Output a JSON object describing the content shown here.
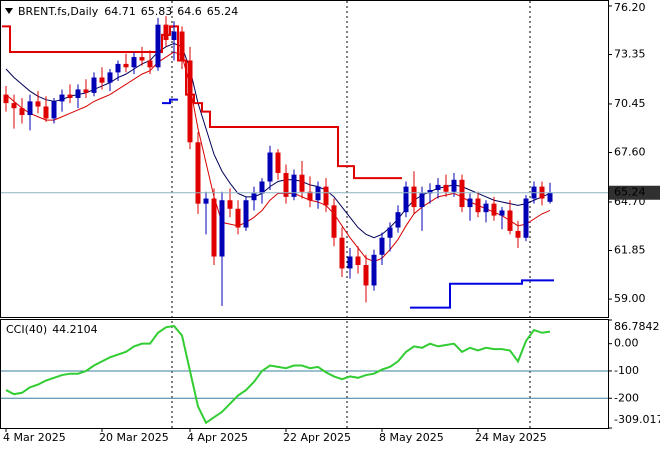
{
  "chart_data": [
    {
      "type": "candlestick",
      "title": "BRENT.fs,Daily",
      "categories": [
        "4 Mar 2025",
        null,
        null,
        null,
        null,
        null,
        null,
        null,
        null,
        null,
        null,
        null,
        "20 Mar 2025",
        null,
        null,
        null,
        null,
        null,
        null,
        null,
        null,
        null,
        null,
        "4 Apr 2025",
        null,
        null,
        null,
        null,
        null,
        null,
        null,
        null,
        null,
        null,
        null,
        "22 Apr 2025",
        null,
        null,
        null,
        null,
        null,
        null,
        null,
        null,
        null,
        null,
        null,
        "8 May 2025",
        null,
        null,
        null,
        null,
        null,
        null,
        null,
        null,
        null,
        null,
        null,
        "24 May 2025",
        null,
        null,
        null,
        null,
        null,
        null,
        null,
        null,
        null
      ],
      "open": [
        71.0,
        70.5,
        70.2,
        69.8,
        70.6,
        70.3,
        69.6,
        70.6,
        71.0,
        70.8,
        71.3,
        71.1,
        72.0,
        71.7,
        72.3,
        72.8,
        72.6,
        73.2,
        73.0,
        72.6,
        75.1,
        74.2,
        74.7,
        73.0,
        68.2,
        64.6,
        64.9,
        61.5,
        64.8,
        64.3,
        63.2,
        64.8,
        65.2,
        65.9,
        67.6,
        66.4,
        65.0,
        66.3,
        65.3,
        64.8,
        65.6,
        64.5,
        62.6,
        60.8,
        61.5,
        61.0,
        59.8,
        61.6,
        62.6,
        63.2,
        64.1,
        65.6,
        64.4,
        65.2,
        65.4,
        65.7,
        65.3,
        66.0,
        64.4,
        64.9,
        64.1,
        64.6,
        63.9,
        64.2,
        63.0,
        62.6,
        64.9,
        65.6,
        64.71
      ],
      "high": [
        71.5,
        71.0,
        70.8,
        71.0,
        71.2,
        70.9,
        70.8,
        71.3,
        71.6,
        71.6,
        71.9,
        72.3,
        72.6,
        72.5,
        73.0,
        73.4,
        73.5,
        73.8,
        73.6,
        75.5,
        75.6,
        75.3,
        75.0,
        73.8,
        68.8,
        65.3,
        65.5,
        65.3,
        65.5,
        64.8,
        65.0,
        65.6,
        66.1,
        68.0,
        67.8,
        66.9,
        66.6,
        67.1,
        66.2,
        65.9,
        66.1,
        64.9,
        63.2,
        62.0,
        62.1,
        61.6,
        61.9,
        62.9,
        63.5,
        64.5,
        65.9,
        66.5,
        65.6,
        65.8,
        66.1,
        66.3,
        66.4,
        66.3,
        65.2,
        65.3,
        64.8,
        65.0,
        64.4,
        64.8,
        63.6,
        65.1,
        65.9,
        65.9,
        65.83
      ],
      "low": [
        70.0,
        69.0,
        69.3,
        68.9,
        69.9,
        69.4,
        69.3,
        70.0,
        70.5,
        70.2,
        70.8,
        70.9,
        71.3,
        71.2,
        71.8,
        72.3,
        72.2,
        72.7,
        72.2,
        72.4,
        73.8,
        73.0,
        72.5,
        67.8,
        64.0,
        62.8,
        61.0,
        58.6,
        63.8,
        62.8,
        63.0,
        64.2,
        64.6,
        65.4,
        66.0,
        64.6,
        64.8,
        64.9,
        64.4,
        64.3,
        64.1,
        62.1,
        60.3,
        60.2,
        60.5,
        58.8,
        59.5,
        61.0,
        61.8,
        62.9,
        63.8,
        64.0,
        63.0,
        64.6,
        64.9,
        65.0,
        65.0,
        64.1,
        63.6,
        63.8,
        63.5,
        63.6,
        63.1,
        62.8,
        62.0,
        62.4,
        64.6,
        64.5,
        64.6
      ],
      "close": [
        70.5,
        70.2,
        69.8,
        70.6,
        70.3,
        69.6,
        70.6,
        71.0,
        70.8,
        71.3,
        71.1,
        72.0,
        71.7,
        72.3,
        72.8,
        72.6,
        73.2,
        73.0,
        72.6,
        75.1,
        74.2,
        74.7,
        73.0,
        68.2,
        64.6,
        64.9,
        61.5,
        64.8,
        64.3,
        63.2,
        64.8,
        65.2,
        65.9,
        67.6,
        66.4,
        65.0,
        66.3,
        65.3,
        64.8,
        65.6,
        64.5,
        62.6,
        60.8,
        61.5,
        61.0,
        59.8,
        61.6,
        62.6,
        63.2,
        64.1,
        65.6,
        64.4,
        65.2,
        65.4,
        65.7,
        65.3,
        66.0,
        64.4,
        64.9,
        64.1,
        64.6,
        63.9,
        64.2,
        63.0,
        62.6,
        64.9,
        65.6,
        64.9,
        65.24
      ],
      "up_color": "#0000b4",
      "down_color": "#e00000",
      "series": [
        {
          "color": "#00005a",
          "values": [
            72.5,
            72.0,
            71.6,
            71.2,
            70.9,
            70.7,
            70.6,
            70.7,
            70.9,
            71.0,
            71.1,
            71.3,
            71.5,
            71.7,
            72.0,
            72.2,
            72.5,
            72.8,
            73.0,
            73.5,
            73.8,
            74.0,
            73.8,
            72.5,
            70.5,
            69.0,
            67.5,
            66.5,
            65.8,
            65.2,
            65.0,
            65.0,
            65.2,
            65.6,
            65.9,
            66.0,
            66.0,
            65.9,
            65.7,
            65.6,
            65.4,
            65.0,
            64.4,
            63.8,
            63.2,
            62.8,
            62.6,
            62.8,
            63.2,
            63.7,
            64.3,
            64.8,
            65.1,
            65.3,
            65.5,
            65.6,
            65.7,
            65.6,
            65.4,
            65.2,
            65.0,
            64.8,
            64.7,
            64.6,
            64.5,
            64.6,
            64.8,
            65.0,
            65.2
          ]
        },
        {
          "color": "#d80000",
          "values": [
            71.0,
            70.6,
            70.2,
            69.9,
            69.7,
            69.5,
            69.5,
            69.7,
            69.9,
            70.1,
            70.3,
            70.6,
            70.8,
            71.0,
            71.3,
            71.6,
            71.9,
            72.2,
            72.4,
            72.9,
            73.2,
            73.5,
            73.3,
            71.5,
            69.0,
            67.0,
            65.0,
            63.5,
            63.4,
            63.3,
            63.5,
            63.8,
            64.2,
            64.8,
            65.2,
            65.2,
            65.2,
            65.0,
            64.8,
            64.7,
            64.5,
            64.0,
            63.3,
            62.6,
            62.0,
            61.4,
            61.2,
            61.4,
            61.9,
            62.5,
            63.3,
            64.0,
            64.4,
            64.7,
            65.0,
            65.1,
            65.2,
            65.0,
            64.7,
            64.5,
            64.3,
            64.1,
            63.9,
            63.6,
            63.3,
            63.4,
            63.7,
            64.0,
            64.2
          ]
        },
        {
          "color": "#e00000",
          "step": true,
          "values": [
            75.0,
            73.5,
            73.5,
            73.5,
            73.5,
            73.5,
            73.5,
            73.5,
            73.5,
            73.5,
            73.5,
            73.5,
            73.5,
            73.5,
            73.5,
            73.5,
            73.5,
            73.5,
            73.5,
            73.5,
            74.5,
            75.0,
            73.0,
            71.0,
            70.5,
            70.0,
            69.1,
            69.1,
            69.1,
            69.1,
            69.1,
            69.1,
            69.1,
            69.1,
            69.1,
            69.1,
            69.1,
            69.1,
            69.1,
            69.1,
            69.1,
            69.1,
            66.8,
            66.8,
            66.1,
            66.1,
            66.1,
            66.1,
            66.1,
            66.1,
            null,
            null,
            null,
            null,
            null,
            null,
            null,
            null,
            null,
            null,
            null,
            null,
            null,
            null,
            null,
            null,
            null,
            null,
            null
          ]
        },
        {
          "color": "#0000e0",
          "step": true,
          "values": [
            null,
            null,
            null,
            null,
            null,
            null,
            null,
            null,
            null,
            null,
            null,
            null,
            null,
            null,
            null,
            null,
            null,
            null,
            null,
            null,
            70.5,
            70.7,
            null,
            null,
            null,
            null,
            null,
            null,
            null,
            null,
            null,
            null,
            null,
            null,
            null,
            null,
            null,
            null,
            null,
            null,
            null,
            null,
            null,
            null,
            null,
            null,
            null,
            null,
            null,
            null,
            null,
            58.5,
            58.5,
            58.5,
            58.5,
            58.5,
            59.9,
            59.9,
            59.9,
            59.9,
            59.9,
            59.9,
            59.9,
            59.9,
            59.9,
            60.1,
            60.1,
            60.1,
            60.1
          ]
        }
      ],
      "ylim": [
        57.95,
        76.49
      ],
      "yticks": [
        {
          "value": 76.2,
          "label": "76.20"
        },
        73.35,
        70.45,
        {
          "value": 67.6,
          "label": "67.60"
        },
        {
          "value": 64.7,
          "label": "64.70"
        },
        61.85,
        {
          "value": 59.0,
          "label": "59.00"
        }
      ]
    },
    {
      "type": "line",
      "title": "CCI(40)",
      "series": [
        {
          "color": "#32cd32",
          "values": [
            -170,
            -185,
            -180,
            -160,
            -150,
            -135,
            -125,
            -115,
            -110,
            -110,
            -100,
            -80,
            -65,
            -50,
            -40,
            -30,
            -10,
            0,
            0,
            40,
            60,
            65,
            30,
            -100,
            -230,
            -290,
            -270,
            -250,
            -220,
            -190,
            -170,
            -140,
            -100,
            -80,
            -85,
            -90,
            -80,
            -80,
            -90,
            -85,
            -105,
            -120,
            -130,
            -120,
            -125,
            -115,
            -110,
            -95,
            -85,
            -65,
            -30,
            -10,
            -15,
            0,
            -10,
            -5,
            0,
            -30,
            -15,
            -25,
            -15,
            -20,
            -20,
            -25,
            -65,
            10,
            50,
            40,
            44.2104
          ]
        }
      ],
      "levels": [
        -100,
        -200
      ],
      "ylim": [
        -309.017,
        86.7842
      ],
      "yticks": [
        86.7842,
        {
          "value": 0,
          "label": "0.00"
        },
        -100,
        -200,
        -309.017
      ]
    }
  ]
}
